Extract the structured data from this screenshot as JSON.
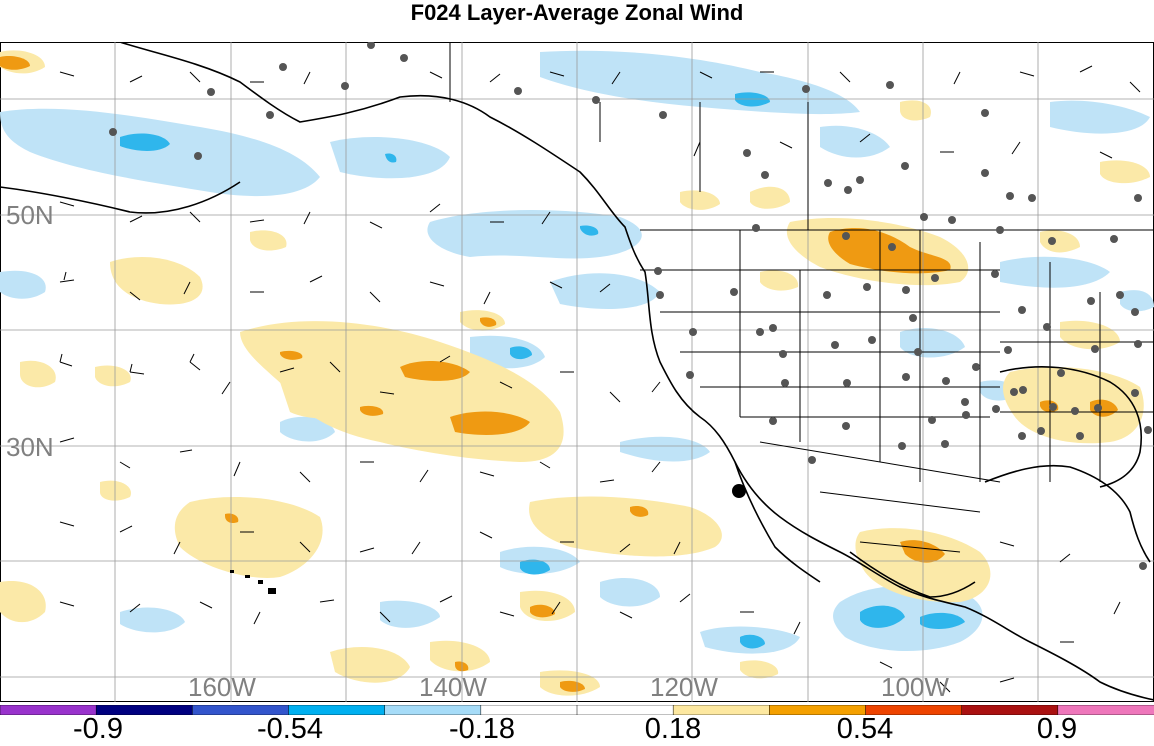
{
  "title": "F024 Layer-Average Zonal Wind",
  "lat_labels": [
    "50N",
    "30N"
  ],
  "lon_labels": [
    "160W",
    "140W",
    "120W",
    "100W"
  ],
  "colorbar": {
    "colors": [
      "#9933cc",
      "#000080",
      "#3355cc",
      "#00b0f0",
      "#a6dcf8",
      "#ffffff",
      "#ffffff",
      "#fde8a0",
      "#f4a000",
      "#ee4400",
      "#aa1111",
      "#ee77bb"
    ],
    "labels": [
      "-0.9",
      "-0.54",
      "-0.18",
      "0.18",
      "0.54",
      "0.9"
    ]
  },
  "colors": {
    "neg_light": "#bfe3f7",
    "neg_mid": "#2fb6ec",
    "pos_light": "#fbe9a8",
    "pos_mid": "#ef9a12",
    "station": "#555555"
  }
}
